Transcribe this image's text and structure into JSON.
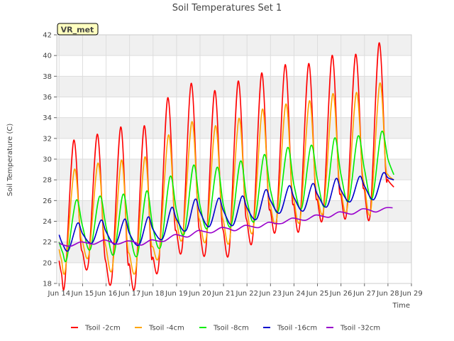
{
  "chart_data": {
    "type": "line",
    "title": "Soil Temperatures Set 1",
    "xlabel": "Time",
    "ylabel": "Soil Temperature (C)",
    "badge": "VR_met",
    "xlim": [
      13.9,
      29.0
    ],
    "ylim": [
      18,
      42
    ],
    "xticks": [
      {
        "v": 14,
        "label": "Jun 14"
      },
      {
        "v": 15,
        "label": "Jun 15"
      },
      {
        "v": 16,
        "label": "Jun 16"
      },
      {
        "v": 17,
        "label": "Jun 17"
      },
      {
        "v": 18,
        "label": "Jun 18"
      },
      {
        "v": 19,
        "label": "Jun 19"
      },
      {
        "v": 20,
        "label": "Jun 20"
      },
      {
        "v": 21,
        "label": "Jun 21"
      },
      {
        "v": 22,
        "label": "Jun 22"
      },
      {
        "v": 23,
        "label": "Jun 23"
      },
      {
        "v": 24,
        "label": "Jun 24"
      },
      {
        "v": 25,
        "label": "Jun 25"
      },
      {
        "v": 26,
        "label": "Jun 26"
      },
      {
        "v": 27,
        "label": "Jun 27"
      },
      {
        "v": 28,
        "label": "Jun 28"
      },
      {
        "v": 29,
        "label": "Jun 29"
      }
    ],
    "yticks": [
      18,
      20,
      22,
      24,
      26,
      28,
      30,
      32,
      34,
      36,
      38,
      40,
      42
    ],
    "grid": true,
    "legend": "bottom",
    "series": [
      {
        "name": "Tsoil -2cm",
        "color": "#ff0000",
        "x": [
          14.0,
          14.1,
          14.25,
          14.62,
          14.9,
          15.0,
          15.25,
          15.62,
          15.9,
          16.0,
          16.25,
          16.62,
          16.9,
          17.0,
          17.25,
          17.62,
          17.9,
          18.0,
          18.25,
          18.62,
          18.9,
          19.0,
          19.25,
          19.62,
          19.9,
          20.0,
          20.25,
          20.62,
          20.9,
          21.0,
          21.25,
          21.62,
          21.9,
          22.0,
          22.25,
          22.62,
          22.9,
          23.0,
          23.25,
          23.62,
          23.9,
          24.0,
          24.25,
          24.62,
          24.9,
          25.0,
          25.25,
          25.62,
          25.9,
          26.0,
          26.25,
          26.62,
          26.9,
          27.0,
          27.25,
          27.62,
          27.9,
          28.0,
          28.25
        ],
        "y": [
          20.2,
          19.0,
          18.2,
          31.8,
          22.5,
          21.0,
          20.0,
          32.4,
          22.0,
          20.0,
          18.6,
          33.1,
          21.0,
          19.8,
          18.1,
          33.2,
          21.5,
          20.5,
          20.0,
          35.9,
          24.5,
          23.0,
          21.7,
          37.3,
          25.0,
          23.0,
          21.4,
          36.6,
          25.0,
          23.0,
          21.4,
          37.5,
          26.0,
          24.0,
          22.6,
          38.3,
          26.5,
          25.0,
          23.7,
          39.1,
          27.0,
          25.5,
          23.7,
          39.2,
          27.5,
          26.0,
          24.8,
          40.0,
          28.0,
          26.5,
          25.0,
          40.1,
          28.5,
          27.0,
          24.8,
          41.2,
          29.0,
          28.0,
          27.3
        ]
      },
      {
        "name": "Tsoil -4cm",
        "color": "#ffa500",
        "x": [
          14.0,
          14.1,
          14.27,
          14.65,
          14.9,
          15.0,
          15.27,
          15.65,
          15.9,
          16.0,
          16.27,
          16.65,
          16.9,
          17.0,
          17.27,
          17.65,
          17.9,
          18.0,
          18.27,
          18.65,
          18.9,
          19.0,
          19.27,
          19.65,
          19.9,
          20.0,
          20.27,
          20.65,
          20.9,
          21.0,
          21.27,
          21.65,
          21.9,
          22.0,
          22.27,
          22.65,
          22.9,
          23.0,
          23.27,
          23.65,
          23.9,
          24.0,
          24.27,
          24.65,
          24.9,
          25.0,
          25.27,
          25.65,
          25.9,
          26.0,
          26.27,
          26.65,
          26.9,
          27.0,
          27.27,
          27.65,
          27.9,
          28.0,
          28.25
        ],
        "y": [
          21.3,
          20.3,
          19.4,
          29.0,
          23.0,
          22.0,
          20.8,
          29.6,
          23.0,
          21.5,
          19.5,
          29.9,
          22.0,
          20.8,
          19.4,
          30.2,
          22.5,
          21.5,
          21.0,
          32.3,
          25.0,
          24.0,
          22.6,
          33.6,
          25.5,
          24.0,
          22.4,
          33.2,
          25.5,
          24.0,
          22.3,
          33.9,
          26.5,
          25.0,
          23.3,
          34.8,
          27.0,
          25.5,
          24.3,
          35.3,
          27.5,
          26.0,
          24.3,
          35.6,
          28.0,
          26.5,
          25.2,
          36.3,
          28.5,
          27.0,
          25.3,
          36.4,
          29.0,
          27.5,
          25.0,
          37.3,
          29.5,
          28.5,
          28.0
        ]
      },
      {
        "name": "Tsoil -8cm",
        "color": "#00ee00",
        "x": [
          14.0,
          14.15,
          14.33,
          14.72,
          15.0,
          15.33,
          15.72,
          16.0,
          16.33,
          16.72,
          17.0,
          17.33,
          17.72,
          18.0,
          18.33,
          18.72,
          19.0,
          19.33,
          19.72,
          20.0,
          20.33,
          20.72,
          21.0,
          21.33,
          21.72,
          22.0,
          22.33,
          22.72,
          23.0,
          23.33,
          23.72,
          24.0,
          24.33,
          24.72,
          25.0,
          25.33,
          25.72,
          26.0,
          26.33,
          26.72,
          27.0,
          27.33,
          27.72,
          28.0,
          28.25
        ],
        "y": [
          22.0,
          21.0,
          20.4,
          26.0,
          23.5,
          21.3,
          26.4,
          23.5,
          20.8,
          26.6,
          23.0,
          20.7,
          26.9,
          23.3,
          21.6,
          28.3,
          25.0,
          22.8,
          29.4,
          25.5,
          23.4,
          29.2,
          25.5,
          23.6,
          29.8,
          26.0,
          24.1,
          30.4,
          27.0,
          25.0,
          31.1,
          27.5,
          25.3,
          31.3,
          28.0,
          25.5,
          32.0,
          28.5,
          26.0,
          32.2,
          29.0,
          26.2,
          32.6,
          30.0,
          28.5
        ]
      },
      {
        "name": "Tsoil -16cm",
        "color": "#0000cc",
        "x": [
          14.0,
          14.15,
          14.4,
          14.78,
          15.0,
          15.4,
          15.78,
          16.0,
          16.4,
          16.78,
          17.0,
          17.4,
          17.78,
          18.0,
          18.4,
          18.78,
          19.0,
          19.4,
          19.78,
          20.0,
          20.4,
          20.78,
          21.0,
          21.4,
          21.78,
          22.0,
          22.4,
          22.78,
          23.0,
          23.4,
          23.78,
          24.0,
          24.4,
          24.78,
          25.0,
          25.4,
          25.78,
          26.0,
          26.4,
          26.78,
          27.0,
          27.4,
          27.78,
          28.0,
          28.25
        ],
        "y": [
          22.7,
          21.8,
          21.2,
          23.8,
          22.8,
          21.9,
          24.1,
          23.0,
          21.8,
          24.2,
          22.8,
          21.7,
          24.4,
          23.2,
          22.3,
          25.3,
          24.2,
          23.1,
          26.1,
          24.9,
          23.5,
          26.2,
          25.0,
          23.6,
          26.4,
          25.3,
          24.2,
          27.0,
          26.0,
          24.8,
          27.4,
          26.3,
          25.0,
          27.6,
          26.6,
          25.4,
          28.1,
          27.0,
          25.9,
          28.3,
          27.4,
          26.1,
          28.6,
          28.2,
          28.0
        ]
      },
      {
        "name": "Tsoil -32cm",
        "color": "#9900cc",
        "x": [
          14.0,
          14.2,
          14.5,
          14.9,
          15.2,
          15.5,
          15.9,
          16.2,
          16.5,
          16.9,
          17.2,
          17.5,
          17.9,
          18.2,
          18.5,
          18.9,
          19.2,
          19.5,
          19.9,
          20.2,
          20.5,
          20.9,
          21.2,
          21.5,
          21.9,
          22.2,
          22.5,
          22.9,
          23.2,
          23.5,
          23.9,
          24.2,
          24.5,
          24.9,
          25.2,
          25.5,
          25.9,
          26.2,
          26.5,
          26.9,
          27.2,
          27.5,
          27.9,
          28.2
        ],
        "y": [
          21.9,
          21.7,
          21.6,
          22.0,
          21.9,
          21.8,
          22.2,
          22.0,
          21.8,
          22.1,
          22.0,
          21.7,
          22.2,
          22.1,
          22.1,
          22.7,
          22.6,
          22.5,
          23.1,
          23.0,
          22.9,
          23.4,
          23.3,
          23.1,
          23.6,
          23.5,
          23.4,
          23.9,
          23.8,
          23.8,
          24.3,
          24.2,
          24.1,
          24.6,
          24.5,
          24.4,
          24.9,
          24.8,
          24.7,
          25.2,
          25.1,
          24.9,
          25.3,
          25.3
        ]
      }
    ]
  }
}
